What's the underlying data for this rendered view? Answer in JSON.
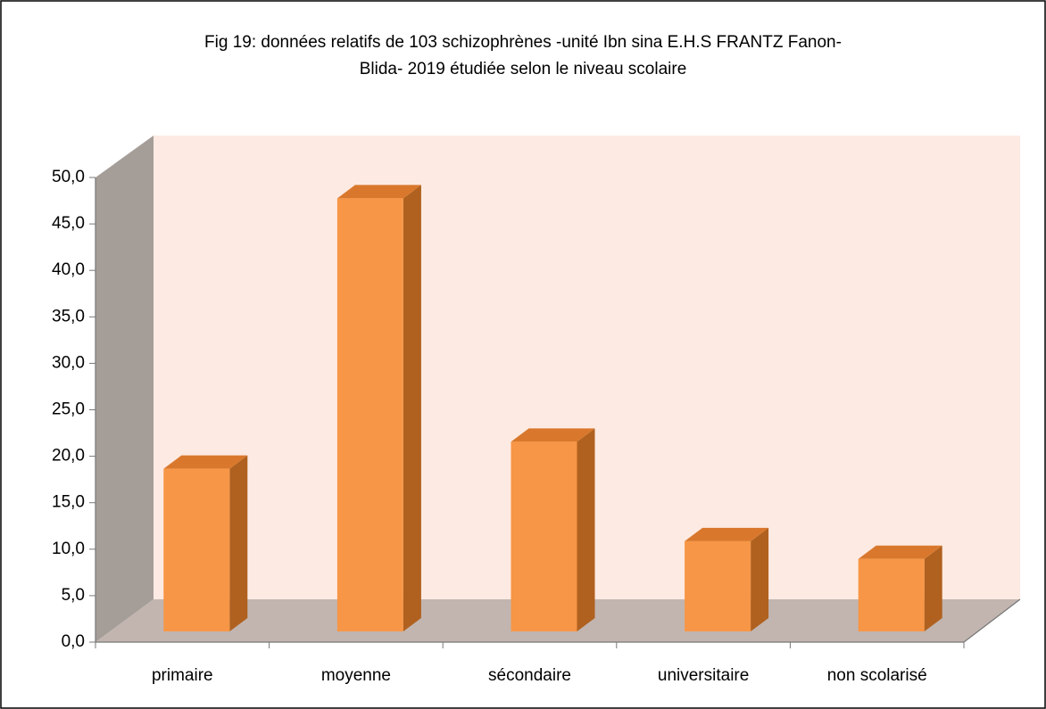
{
  "chart_data": {
    "type": "bar3d",
    "title": [
      "Fig 19: données relatifs de 103 schizophrènes -unité Ibn sina E.H.S FRANTZ Fanon-",
      "Blida- 2019 étudiée selon le niveau scolaire"
    ],
    "categories": [
      "primaire",
      "moyenne",
      "sécondaire",
      "universitaire",
      "non scolarisé"
    ],
    "values": [
      17.5,
      46.6,
      20.4,
      9.7,
      7.8
    ],
    "color": "#f79646",
    "ylim": [
      0,
      50
    ],
    "yticks": [
      {
        "value": 0,
        "label": "0,0"
      },
      {
        "value": 5,
        "label": "5,0"
      },
      {
        "value": 10,
        "label": "10,0"
      },
      {
        "value": 15,
        "label": "15,0"
      },
      {
        "value": 20,
        "label": "20,0"
      },
      {
        "value": 25,
        "label": "25,0"
      },
      {
        "value": 30,
        "label": "30,0"
      },
      {
        "value": 35,
        "label": "35,0"
      },
      {
        "value": 40,
        "label": "40,0"
      },
      {
        "value": 45,
        "label": "45,0"
      },
      {
        "value": 50,
        "label": "50,0"
      }
    ]
  }
}
